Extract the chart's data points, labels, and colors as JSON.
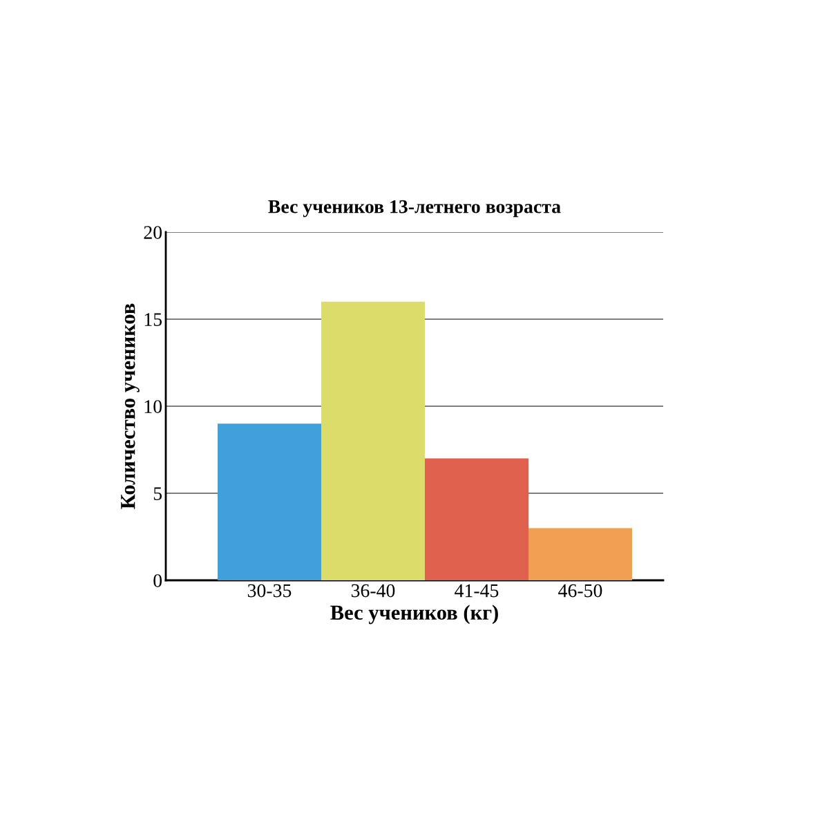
{
  "chart_data": {
    "type": "bar",
    "title": "Вес учеников 13-летнего возраста",
    "xlabel": "Вес учеников (кг)",
    "ylabel": "Количество учеников",
    "categories": [
      "30-35",
      "36-40",
      "41-45",
      "46-50"
    ],
    "values": [
      9,
      16,
      7,
      3
    ],
    "colors": [
      "#3fa0dc",
      "#dcdc6a",
      "#e0604e",
      "#f0a050"
    ],
    "ylim": [
      0,
      20
    ],
    "yticks": [
      0,
      5,
      10,
      15,
      20
    ],
    "grid": "y"
  }
}
